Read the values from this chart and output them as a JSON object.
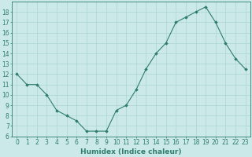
{
  "x": [
    0,
    1,
    2,
    3,
    4,
    5,
    6,
    7,
    8,
    9,
    10,
    11,
    12,
    13,
    14,
    15,
    16,
    17,
    18,
    19,
    20,
    21,
    22,
    23
  ],
  "y": [
    12,
    11,
    11,
    10,
    8.5,
    8,
    7.5,
    6.5,
    6.5,
    6.5,
    8.5,
    9,
    10.5,
    12.5,
    14,
    15,
    17,
    17.5,
    18,
    18.5,
    17,
    15,
    13.5,
    12.5
  ],
  "xlabel": "Humidex (Indice chaleur)",
  "ylim": [
    6,
    19
  ],
  "xlim": [
    -0.5,
    23.5
  ],
  "yticks": [
    6,
    7,
    8,
    9,
    10,
    11,
    12,
    13,
    14,
    15,
    16,
    17,
    18
  ],
  "xticks": [
    0,
    1,
    2,
    3,
    4,
    5,
    6,
    7,
    8,
    9,
    10,
    11,
    12,
    13,
    14,
    15,
    16,
    17,
    18,
    19,
    20,
    21,
    22,
    23
  ],
  "line_color": "#2e7d6e",
  "marker_color": "#2e7d6e",
  "bg_color": "#cce9e9",
  "grid_color": "#aad4d4",
  "xlabel_fontsize": 6.5,
  "tick_fontsize": 5.5
}
